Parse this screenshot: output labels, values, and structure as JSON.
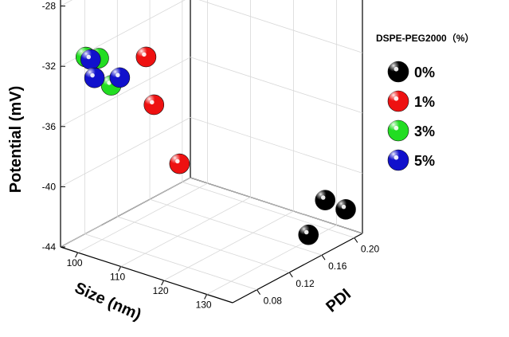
{
  "chart_data": {
    "type": "scatter",
    "xlabel": "Size (nm)",
    "ylabel": "PDI",
    "zlabel": "Potential (mV)",
    "x_ticks": [
      "100",
      "110",
      "120",
      "130"
    ],
    "y_ticks": [
      "0.08",
      "0.12",
      "0.16",
      "0.20"
    ],
    "z_ticks": [
      "-28",
      "-32",
      "-36",
      "-40",
      "-44"
    ],
    "xlim": [
      96,
      136
    ],
    "ylim": [
      0.05,
      0.21
    ],
    "zlim": [
      -44,
      -24
    ],
    "grid": true,
    "legend_position": "right",
    "legend_title": "DSPE-PEG2000（%）",
    "series": [
      {
        "name": "0%",
        "color": "#000000",
        "points": [
          {
            "x": 133,
            "y": 0.18,
            "z": -41.2
          },
          {
            "x": 134,
            "y": 0.2,
            "z": -42.3
          },
          {
            "x": 131,
            "y": 0.17,
            "z": -43.4
          }
        ]
      },
      {
        "name": "1%",
        "color": "#ee1111",
        "points": [
          {
            "x": 114,
            "y": 0.06,
            "z": -30.0
          },
          {
            "x": 113,
            "y": 0.075,
            "z": -33.7
          },
          {
            "x": 118,
            "y": 0.08,
            "z": -37.3
          }
        ]
      },
      {
        "name": "3%",
        "color": "#22dd22",
        "points": [
          {
            "x": 100,
            "y": 0.06,
            "z": -31.3
          },
          {
            "x": 103,
            "y": 0.06,
            "z": -31.1
          },
          {
            "x": 104,
            "y": 0.07,
            "z": -33.1
          }
        ]
      },
      {
        "name": "5%",
        "color": "#1111cc",
        "points": [
          {
            "x": 103,
            "y": 0.05,
            "z": -30.9
          },
          {
            "x": 102,
            "y": 0.06,
            "z": -32.5
          },
          {
            "x": 106,
            "y": 0.07,
            "z": -32.4
          }
        ]
      }
    ]
  }
}
